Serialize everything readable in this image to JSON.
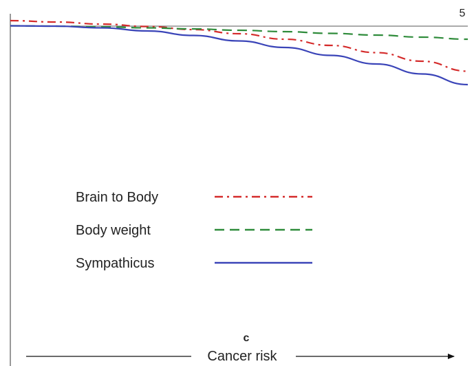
{
  "chart_data": {
    "type": "line",
    "y_tick_label": "5",
    "panel_label": "c",
    "xlabel": "Cancer risk",
    "xlim": [
      0,
      1
    ],
    "ylim": [
      0,
      5
    ],
    "grid": false,
    "legend_position": "center-left",
    "series": [
      {
        "name": "Brain to Body",
        "style": "dash-dot",
        "color": "#d42a2a",
        "x": [
          0,
          0.1,
          0.2,
          0.3,
          0.4,
          0.5,
          0.6,
          0.7,
          0.8,
          0.9,
          1.0
        ],
        "y": [
          5.16,
          5.12,
          5.06,
          4.99,
          4.9,
          4.78,
          4.62,
          4.44,
          4.23,
          3.98,
          3.69
        ]
      },
      {
        "name": "Body weight",
        "style": "dashed",
        "color": "#2e8b3a",
        "x": [
          0,
          0.1,
          0.2,
          0.3,
          0.4,
          0.5,
          0.6,
          0.7,
          0.8,
          0.9,
          1.0
        ],
        "y": [
          5.01,
          5.0,
          4.98,
          4.95,
          4.92,
          4.88,
          4.84,
          4.79,
          4.74,
          4.68,
          4.62
        ]
      },
      {
        "name": "Sympathicus",
        "style": "solid",
        "color": "#3a44b8",
        "x": [
          0,
          0.1,
          0.2,
          0.3,
          0.4,
          0.5,
          0.6,
          0.7,
          0.8,
          0.9,
          1.0
        ],
        "y": [
          5.01,
          5.0,
          4.95,
          4.86,
          4.73,
          4.57,
          4.38,
          4.15,
          3.9,
          3.61,
          3.3
        ]
      }
    ]
  }
}
